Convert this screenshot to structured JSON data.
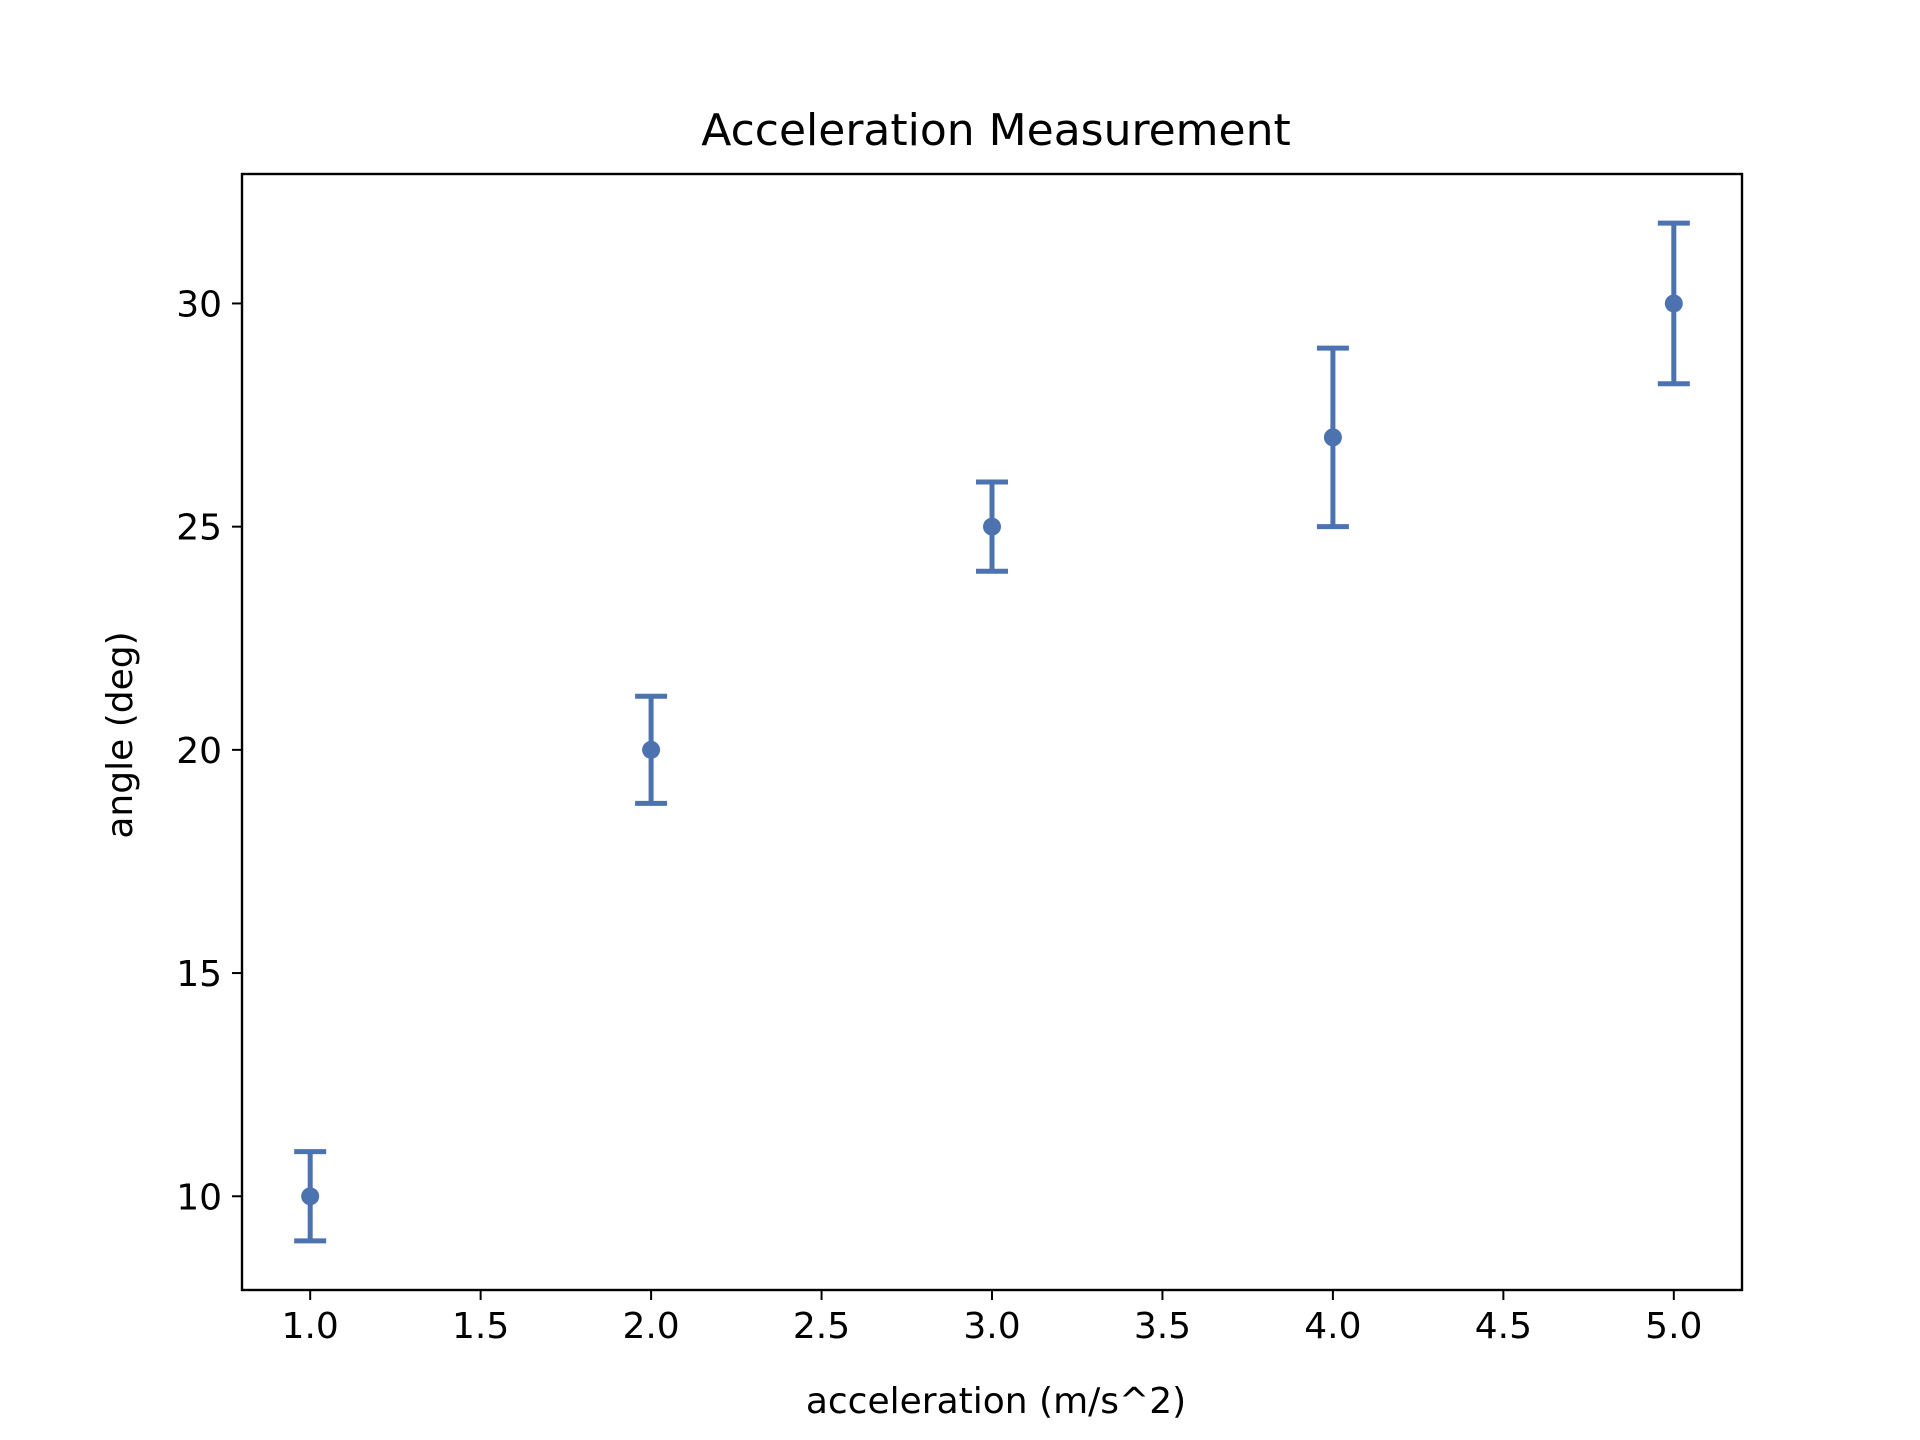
{
  "chart_data": {
    "type": "scatter",
    "title": "Acceleration Measurement",
    "xlabel": "acceleration (m/s^2)",
    "ylabel": "angle (deg)",
    "xlim": [
      0.8,
      5.2
    ],
    "ylim": [
      7.9,
      32.9
    ],
    "xticks": [
      1.0,
      1.5,
      2.0,
      2.5,
      3.0,
      3.5,
      4.0,
      4.5,
      5.0
    ],
    "xtick_labels": [
      "1.0",
      "1.5",
      "2.0",
      "2.5",
      "3.0",
      "3.5",
      "4.0",
      "4.5",
      "5.0"
    ],
    "yticks": [
      10,
      15,
      20,
      25,
      30
    ],
    "ytick_labels": [
      "10",
      "15",
      "20",
      "25",
      "30"
    ],
    "grid": false,
    "color": "#4c72b0",
    "series": [
      {
        "x": [
          1,
          2,
          3,
          4,
          5
        ],
        "y": [
          10,
          20,
          25,
          27,
          30
        ],
        "yerr": [
          1.0,
          1.2,
          1.0,
          2.0,
          1.8
        ]
      }
    ]
  }
}
